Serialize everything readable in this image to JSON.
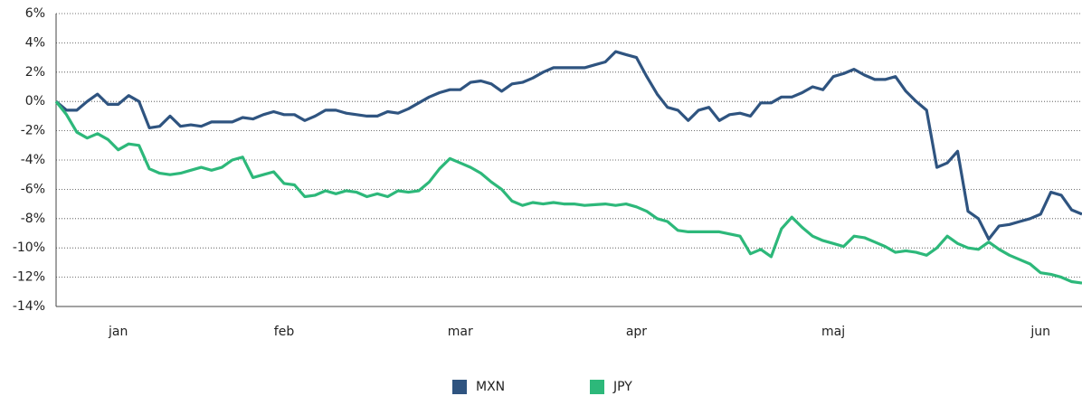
{
  "chart_data": {
    "type": "line",
    "categories": [
      null,
      null,
      null,
      null,
      null,
      null,
      "jan",
      null,
      null,
      null,
      null,
      null,
      null,
      null,
      null,
      null,
      null,
      null,
      null,
      null,
      null,
      null,
      "feb",
      null,
      null,
      null,
      null,
      null,
      null,
      null,
      null,
      null,
      null,
      null,
      null,
      null,
      null,
      null,
      null,
      "mar",
      null,
      null,
      null,
      null,
      null,
      null,
      null,
      null,
      null,
      null,
      null,
      null,
      null,
      null,
      null,
      null,
      "apr",
      null,
      null,
      null,
      null,
      null,
      null,
      null,
      null,
      null,
      null,
      null,
      null,
      null,
      null,
      null,
      null,
      null,
      null,
      "maj",
      null,
      null,
      null,
      null,
      null,
      null,
      null,
      null,
      null,
      null,
      null,
      null,
      null,
      null,
      null,
      null,
      null,
      null,
      null,
      "jun",
      null,
      null,
      null,
      null
    ],
    "series": [
      {
        "name": "MXN",
        "color": "#2f5480",
        "values": [
          0,
          -0.6,
          -0.6,
          0,
          0.5,
          -0.2,
          -0.2,
          0.4,
          0,
          -1.8,
          -1.7,
          -1,
          -1.7,
          -1.6,
          -1.7,
          -1.4,
          -1.4,
          -1.4,
          -1.1,
          -1.2,
          -0.9,
          -0.7,
          -0.9,
          -0.9,
          -1.3,
          -1,
          -0.6,
          -0.6,
          -0.8,
          -0.9,
          -1,
          -1,
          -0.7,
          -0.8,
          -0.5,
          -0.1,
          0.3,
          0.6,
          0.8,
          0.8,
          1.3,
          1.4,
          1.2,
          0.7,
          1.2,
          1.3,
          1.6,
          2,
          2.3,
          2.3,
          2.3,
          2.3,
          2.5,
          2.7,
          3.4,
          3.2,
          3,
          1.7,
          0.5,
          -0.4,
          -0.6,
          -1.3,
          -0.6,
          -0.4,
          -1.3,
          -0.9,
          -0.8,
          -1,
          -0.1,
          -0.1,
          0.3,
          0.3,
          0.6,
          1,
          0.8,
          1.7,
          1.9,
          2.2,
          1.8,
          1.5,
          1.5,
          1.7,
          0.7,
          0,
          -0.6,
          -4.5,
          -4.2,
          -3.4,
          -7.5,
          -8,
          -9.4,
          -8.5,
          -8.4,
          -8.2,
          -8,
          -7.7,
          -6.2,
          -6.4,
          -7.4,
          -7.7
        ]
      },
      {
        "name": "JPY",
        "color": "#2db87a",
        "values": [
          0,
          -0.9,
          -2.1,
          -2.5,
          -2.2,
          -2.6,
          -3.3,
          -2.9,
          -3,
          -4.6,
          -4.9,
          -5,
          -4.9,
          -4.7,
          -4.5,
          -4.7,
          -4.5,
          -4,
          -3.8,
          -5.2,
          -5,
          -4.8,
          -5.6,
          -5.7,
          -6.5,
          -6.4,
          -6.1,
          -6.3,
          -6.1,
          -6.2,
          -6.5,
          -6.3,
          -6.5,
          -6.1,
          -6.2,
          -6.1,
          -5.5,
          -4.6,
          -3.9,
          -4.2,
          -4.5,
          -4.9,
          -5.5,
          -6,
          -6.8,
          -7.1,
          -6.9,
          -7,
          -6.9,
          -7,
          -7,
          -7.1,
          -7.05,
          -7,
          -7.1,
          -7,
          -7.2,
          -7.5,
          -8,
          -8.2,
          -8.8,
          -8.9,
          -8.9,
          -8.9,
          -8.9,
          -9.05,
          -9.2,
          -10.4,
          -10.1,
          -10.6,
          -8.7,
          -7.9,
          -8.6,
          -9.2,
          -9.5,
          -9.7,
          -9.9,
          -9.2,
          -9.3,
          -9.6,
          -9.9,
          -10.3,
          -10.2,
          -10.3,
          -10.5,
          -10,
          -9.2,
          -9.7,
          -10,
          -10.1,
          -9.6,
          -10.1,
          -10.5,
          -10.8,
          -11.1,
          -11.7,
          -11.8,
          -12,
          -12.3,
          -12.4
        ]
      }
    ],
    "ylim": [
      -14,
      6
    ],
    "yticks": [
      {
        "value": -14,
        "label": "-14%"
      },
      {
        "value": -12,
        "label": "-12%"
      },
      {
        "value": -10,
        "label": "-10%"
      },
      {
        "value": -8,
        "label": "-8%"
      },
      {
        "value": -6,
        "label": "-6%"
      },
      {
        "value": -4,
        "label": "-4%"
      },
      {
        "value": -2,
        "label": "-2%"
      },
      {
        "value": 0,
        "label": "0%"
      },
      {
        "value": 2,
        "label": "2%"
      },
      {
        "value": 4,
        "label": "4%"
      },
      {
        "value": 6,
        "label": "6%"
      }
    ],
    "grid": true,
    "legend": "bottom"
  }
}
